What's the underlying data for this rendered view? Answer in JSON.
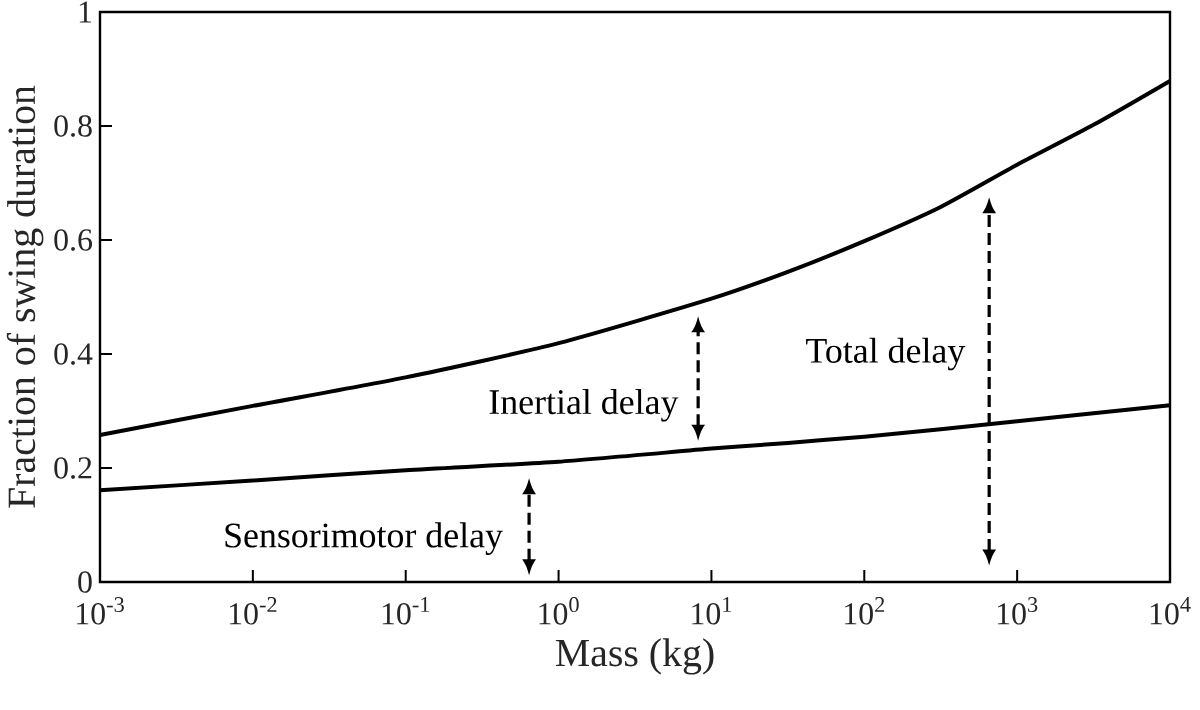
{
  "chart_data": {
    "type": "line",
    "xlabel": "Mass (kg)",
    "ylabel": "Fraction of swing duration",
    "log": "x",
    "x": [
      0.001,
      0.01,
      0.1,
      1,
      10,
      31.6,
      100,
      316,
      1000,
      3160,
      10000
    ],
    "series": [
      {
        "color": "#000000",
        "values": [
          0.258,
          0.309,
          0.359,
          0.419,
          0.497,
          0.544,
          0.598,
          0.658,
          0.732,
          0.802,
          0.879
        ]
      },
      {
        "color": "#000000",
        "values": [
          0.161,
          0.178,
          0.196,
          0.211,
          0.234,
          0.244,
          0.255,
          0.268,
          0.282,
          0.296,
          0.31
        ]
      }
    ],
    "xlim": [
      0.001,
      10000
    ],
    "xticks": [
      {
        "value": 0.001,
        "label": "10$^{-3}$"
      },
      {
        "value": 0.01,
        "label": "10$^{-2}$"
      },
      {
        "value": 0.1,
        "label": "10$^{-1}$"
      },
      {
        "value": 1,
        "label": "10$^{0}$"
      },
      {
        "value": 10,
        "label": "10$^{1}$"
      },
      {
        "value": 100,
        "label": "10$^{2}$"
      },
      {
        "value": 1000,
        "label": "10$^{3}$"
      },
      {
        "value": 10000,
        "label": "10$^{4}$"
      }
    ],
    "ylim": [
      0,
      1
    ],
    "yticks": [
      0,
      0.2,
      0.4,
      0.6,
      0.8,
      1
    ],
    "grid": false,
    "marker": "none",
    "line_style": "solid",
    "annotations": [
      "Sensorimotor delay",
      "Inertial delay",
      "Total delay"
    ]
  }
}
